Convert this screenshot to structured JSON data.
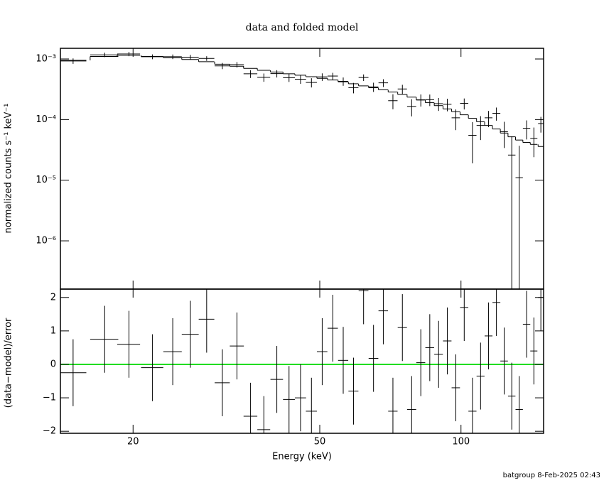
{
  "footer": "batgroup  8-Feb-2025 02:43",
  "chart_data": [
    {
      "type": "errorbar",
      "title": "data and folded model",
      "ylabel": "normalized counts s⁻¹ keV⁻¹",
      "log_x": true,
      "log_y": true,
      "color": "#000000",
      "xlim": [
        14,
        150
      ],
      "ylim": [
        1.6e-07,
        0.0015
      ],
      "yticks": [
        {
          "value": 0.001,
          "label": "10⁻³"
        },
        {
          "value": 0.0001,
          "label": "10⁻⁴"
        },
        {
          "value": 1e-05,
          "label": "10⁻⁵"
        },
        {
          "value": 1e-06,
          "label": "10⁻⁶"
        }
      ],
      "x": [
        14.9,
        17.4,
        19.6,
        22.0,
        24.3,
        26.5,
        28.7,
        31.0,
        33.3,
        35.6,
        38.0,
        40.5,
        43.0,
        45.5,
        48.0,
        50.6,
        53.3,
        56.1,
        59.0,
        62.0,
        65.1,
        68.3,
        71.6,
        75.0,
        78.5,
        82.1,
        85.8,
        89.6,
        93.5,
        97.5,
        101.6,
        105.8,
        110.1,
        114.5,
        119.0,
        123.6,
        128.3,
        133.1,
        138,
        143,
        148
      ],
      "xerr": [
        1.0,
        1.2,
        1.1,
        1.2,
        1.1,
        1.1,
        1.1,
        1.15,
        1.15,
        1.2,
        1.2,
        1.25,
        1.25,
        1.25,
        1.3,
        1.3,
        1.35,
        1.4,
        1.45,
        1.5,
        1.55,
        1.6,
        1.65,
        1.7,
        1.75,
        1.8,
        1.85,
        1.9,
        1.95,
        2.0,
        2.05,
        2.1,
        2.15,
        2.2,
        2.3,
        2.3,
        2.35,
        2.4,
        2.5,
        2.5,
        2.0
      ],
      "values": [
        0.000926,
        0.00117,
        0.00121,
        0.00109,
        0.00109,
        0.00107,
        0.00102,
        0.00077,
        0.000806,
        0.00057,
        0.000498,
        0.000574,
        0.000492,
        0.000464,
        0.00041,
        0.000507,
        0.000523,
        0.000428,
        0.000337,
        0.000495,
        0.000346,
        0.000404,
        0.000205,
        0.00032,
        0.000165,
        0.000212,
        0.000213,
        0.000183,
        0.000179,
        0.000107,
        0.000185,
        5.5e-05,
        8e-05,
        0.000107,
        0.000127,
        6.3e-05,
        2.6e-05,
        1.1e-05,
        7.2e-05,
        4.9e-05,
        8.6e-05
      ],
      "errors": [
        9.5e-05,
        9.9e-05,
        0.0001,
        9.9e-05,
        9.5e-05,
        9.8e-05,
        9e-05,
        9e-05,
        8.4e-05,
        8.4e-05,
        7.8e-05,
        7.9e-05,
        7.4e-05,
        7.6e-05,
        7.1e-05,
        7.2e-05,
        6.8e-05,
        6.7e-05,
        6.6e-05,
        6.1e-05,
        6e-05,
        5.9e-05,
        5.7e-05,
        5.5e-05,
        5.2e-05,
        4.8e-05,
        4.6e-05,
        4.4e-05,
        4.2e-05,
        4e-05,
        3.8e-05,
        3.6e-05,
        3.4e-05,
        3.2e-05,
        3.1e-05,
        2.9e-05,
        2.7e-05,
        2.6e-05,
        2.5e-05,
        2.5e-05,
        2.5e-05
      ],
      "model": [
        0.00095,
        0.0011,
        0.00115,
        0.0011,
        0.00105,
        0.00098,
        0.0009,
        0.00082,
        0.00076,
        0.0007,
        0.00065,
        0.00061,
        0.00057,
        0.00054,
        0.00051,
        0.00048,
        0.00045,
        0.00042,
        0.00039,
        0.00036,
        0.000335,
        0.00031,
        0.000285,
        0.00026,
        0.000235,
        0.00021,
        0.00019,
        0.00017,
        0.00015,
        0.000135,
        0.00012,
        0.000105,
        9.2e-05,
        8e-05,
        7e-05,
        6e-05,
        5.2e-05,
        4.6e-05,
        4.2e-05,
        3.9e-05,
        3.6e-05
      ]
    },
    {
      "type": "errorbar",
      "ylabel": "(data−model)/error",
      "xlabel": "Energy (keV)",
      "log_x": true,
      "log_y": false,
      "color": "#000000",
      "zero_line_color": "#22dd22",
      "xlim": [
        14,
        150
      ],
      "ylim": [
        -2.06,
        2.25
      ],
      "xticks": [
        20,
        50,
        100
      ],
      "yticks": [
        {
          "value": -2,
          "label": "−2"
        },
        {
          "value": -1,
          "label": "−1"
        },
        0,
        1,
        2
      ],
      "x": [
        14.9,
        17.4,
        19.6,
        22.0,
        24.3,
        26.5,
        28.7,
        31.0,
        33.3,
        35.6,
        38.0,
        40.5,
        43.0,
        45.5,
        48.0,
        50.6,
        53.3,
        56.1,
        59.0,
        62.0,
        65.1,
        68.3,
        71.6,
        75.0,
        78.5,
        82.1,
        85.8,
        89.6,
        93.5,
        97.5,
        101.6,
        105.8,
        110.1,
        114.5,
        119.0,
        123.6,
        128.3,
        133.1,
        138,
        143,
        148
      ],
      "xerr": [
        1.0,
        1.2,
        1.1,
        1.2,
        1.1,
        1.1,
        1.1,
        1.15,
        1.15,
        1.2,
        1.2,
        1.25,
        1.25,
        1.25,
        1.3,
        1.3,
        1.35,
        1.4,
        1.45,
        1.5,
        1.55,
        1.6,
        1.65,
        1.7,
        1.75,
        1.8,
        1.85,
        1.9,
        1.95,
        2.0,
        2.05,
        2.1,
        2.15,
        2.2,
        2.3,
        2.3,
        2.35,
        2.4,
        2.5,
        2.5,
        2.0
      ],
      "values": [
        -0.25,
        0.75,
        0.6,
        -0.1,
        0.38,
        0.9,
        1.35,
        -0.55,
        0.55,
        -1.55,
        -1.95,
        -0.45,
        -1.05,
        -1.0,
        -1.4,
        0.38,
        1.08,
        0.12,
        -0.8,
        2.2,
        0.18,
        1.6,
        -1.4,
        1.1,
        -1.35,
        0.05,
        0.5,
        0.3,
        0.7,
        -0.7,
        1.7,
        -1.4,
        -0.35,
        0.85,
        1.85,
        0.1,
        -0.95,
        -1.35,
        1.2,
        0.4,
        2.0
      ],
      "errors": [
        1,
        1,
        1,
        1,
        1,
        1,
        1,
        1,
        1,
        1,
        1,
        1,
        1,
        1,
        1,
        1,
        1,
        1,
        1,
        1,
        1,
        1,
        1,
        1,
        1,
        1,
        1,
        1,
        1,
        1,
        1,
        1,
        1,
        1,
        1,
        1,
        1,
        1,
        1,
        1,
        1
      ]
    }
  ]
}
